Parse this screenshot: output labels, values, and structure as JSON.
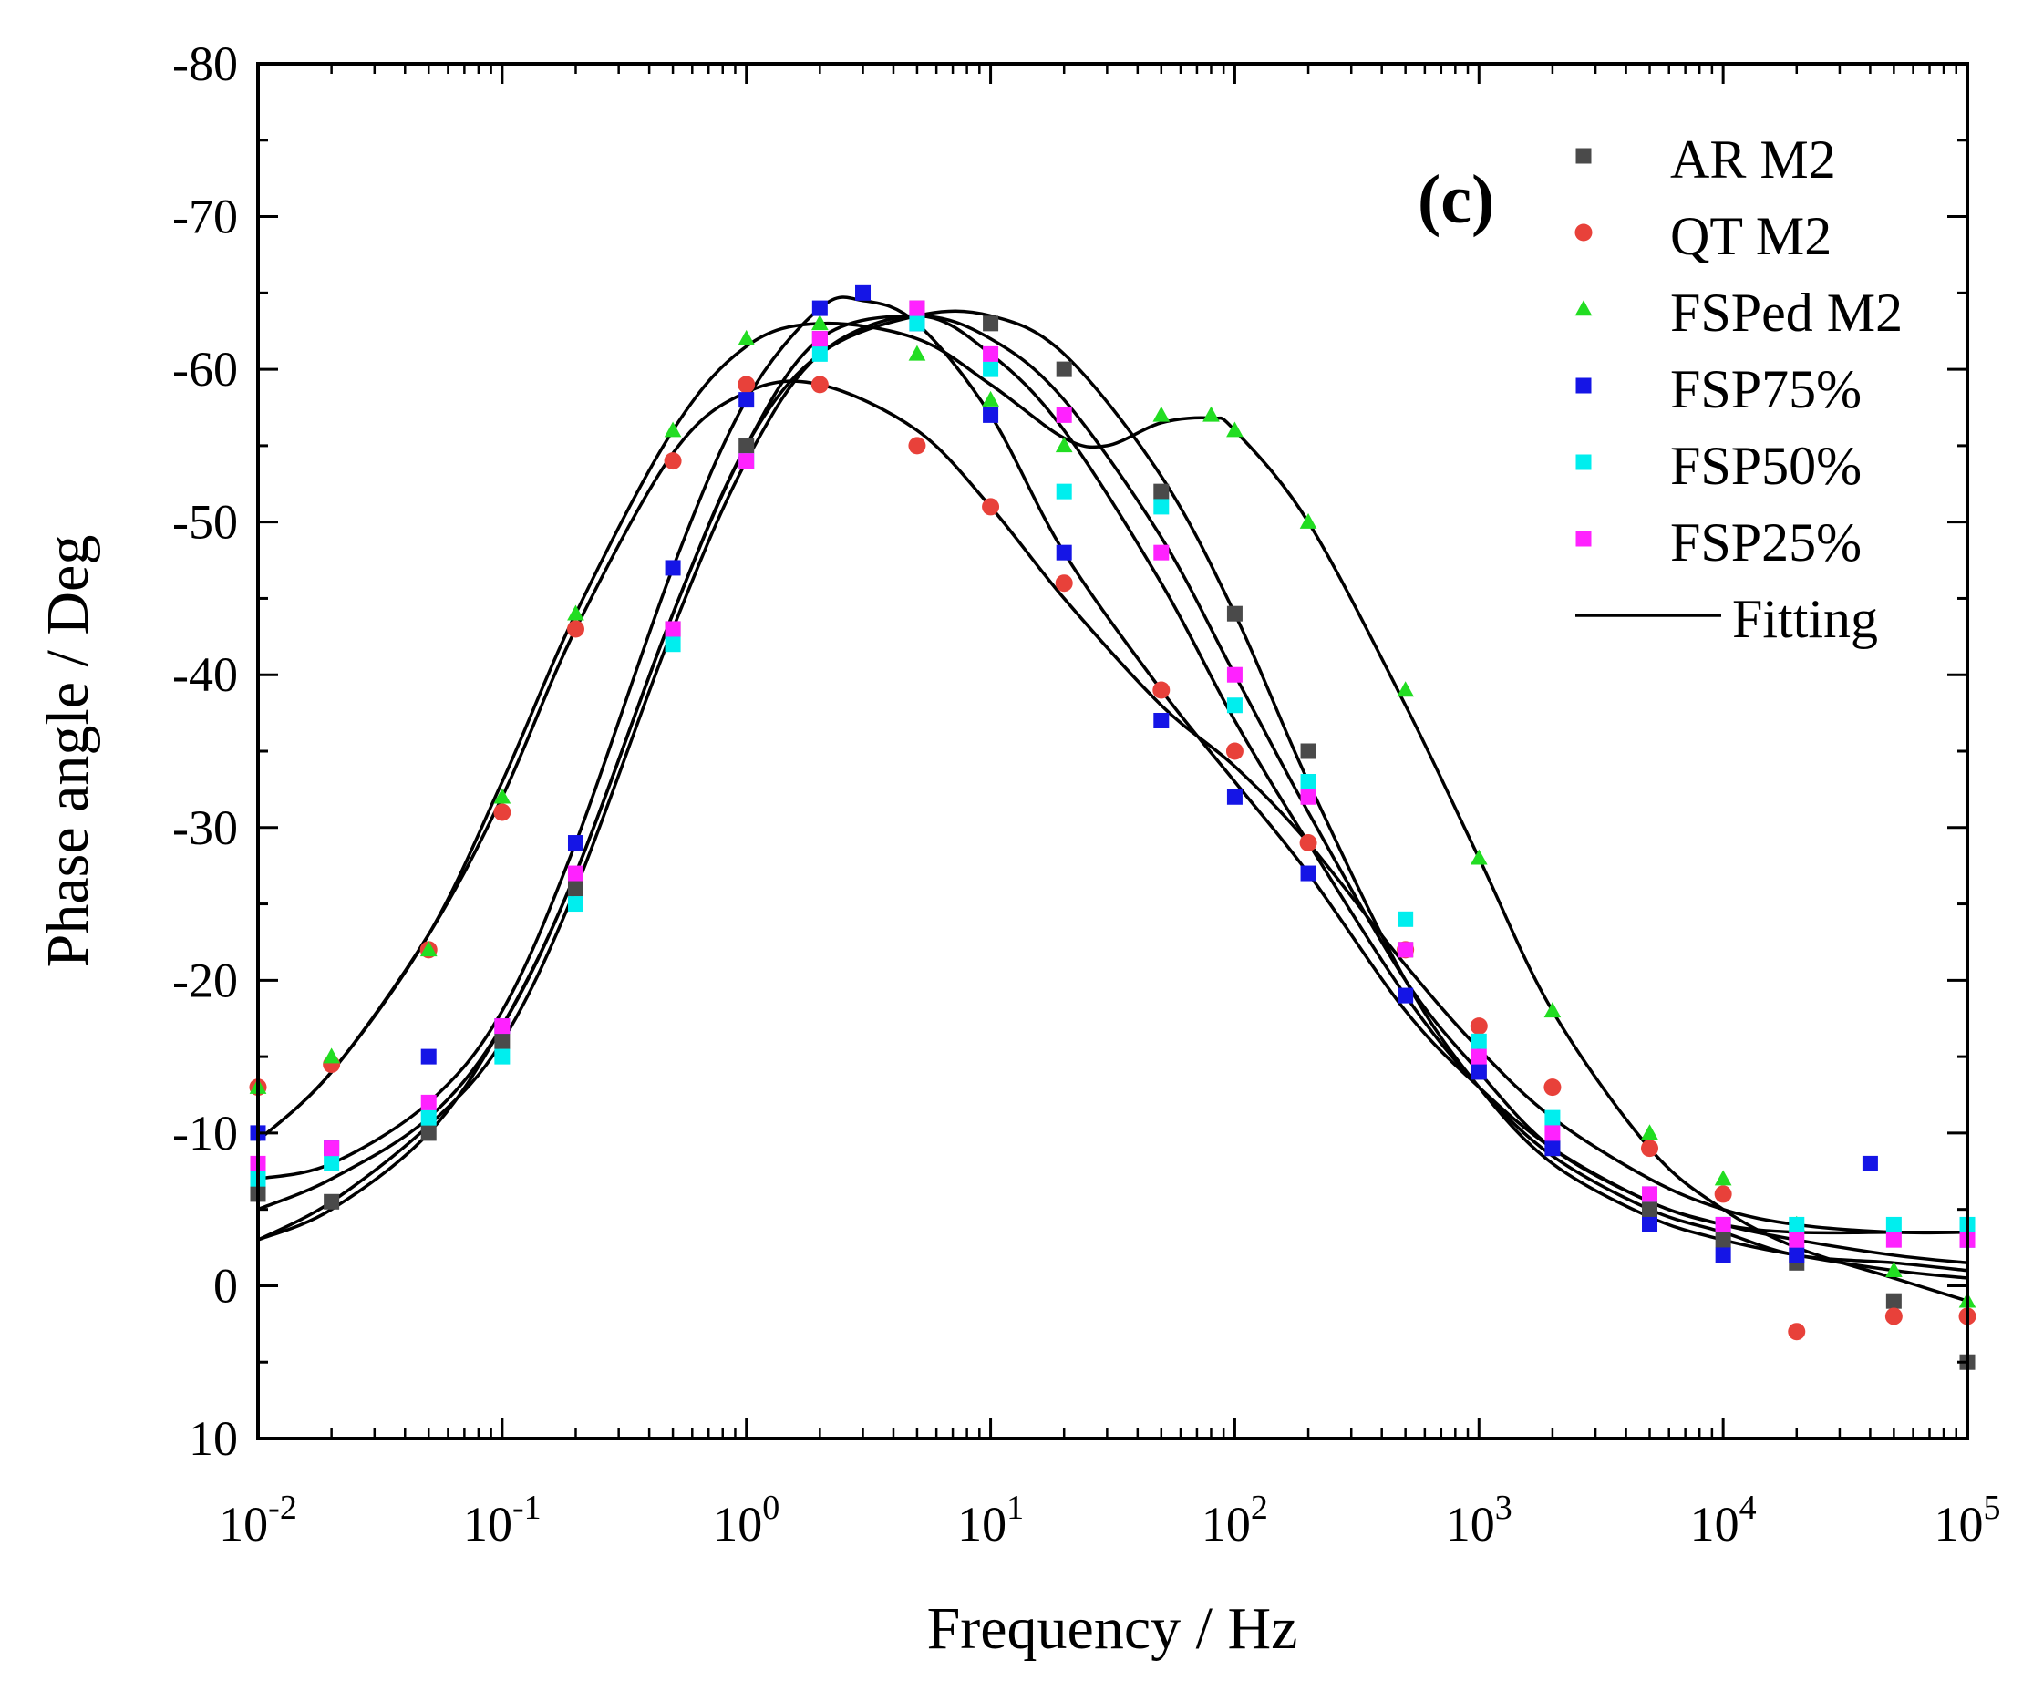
{
  "chart_data": {
    "type": "scatter",
    "title": "",
    "panel_label": "(c)",
    "xlabel": "Frequency / Hz",
    "ylabel": "Phase angle / Deg",
    "x_scale": "log",
    "xlim": [
      0.01,
      100000
    ],
    "ylim": [
      10,
      -80
    ],
    "x_ticks": [
      {
        "base": "10",
        "exp": "-2"
      },
      {
        "base": "10",
        "exp": "-1"
      },
      {
        "base": "10",
        "exp": "0"
      },
      {
        "base": "10",
        "exp": "1"
      },
      {
        "base": "10",
        "exp": "2"
      },
      {
        "base": "10",
        "exp": "3"
      },
      {
        "base": "10",
        "exp": "4"
      },
      {
        "base": "10",
        "exp": "5"
      }
    ],
    "y_ticks": [
      "-80",
      "-70",
      "-60",
      "-50",
      "-40",
      "-30",
      "-20",
      "-10",
      "0",
      "10"
    ],
    "legend_position": "top-right",
    "fit_label": "Fitting",
    "series": [
      {
        "name": "AR M2",
        "marker": "square",
        "color": "#4a4a4a",
        "x": [
          0.01,
          0.02,
          0.05,
          0.1,
          0.2,
          0.5,
          1,
          2,
          5,
          10,
          20,
          50,
          100,
          200,
          500,
          1000,
          2000,
          5000,
          10000,
          20000,
          50000,
          100000
        ],
        "y": [
          -6,
          -5.5,
          -10,
          -16,
          -26,
          -43,
          -55,
          -62,
          -64,
          -63,
          -60,
          -52,
          -44,
          -35,
          -22,
          -14,
          -9,
          -5,
          -3,
          -1.5,
          1,
          5
        ]
      },
      {
        "name": "QT M2",
        "marker": "circle",
        "color": "#e8413a",
        "x": [
          0.01,
          0.02,
          0.05,
          0.1,
          0.2,
          0.5,
          1,
          2,
          5,
          10,
          20,
          50,
          100,
          200,
          500,
          1000,
          2000,
          5000,
          10000,
          20000,
          50000,
          100000
        ],
        "y": [
          -13,
          -14.5,
          -22,
          -31,
          -43,
          -54,
          -59,
          -59,
          -55,
          -51,
          -46,
          -39,
          -35,
          -29,
          -22,
          -17,
          -13,
          -9,
          -6,
          3,
          2,
          2
        ]
      },
      {
        "name": "FSPed M2",
        "marker": "triangle",
        "color": "#22dd22",
        "x": [
          0.01,
          0.02,
          0.05,
          0.1,
          0.2,
          0.5,
          1,
          2,
          5,
          10,
          20,
          50,
          80,
          100,
          200,
          500,
          1000,
          2000,
          5000,
          10000,
          20000,
          50000,
          100000
        ],
        "y": [
          -13,
          -15,
          -22,
          -32,
          -44,
          -56,
          -62,
          -63,
          -61,
          -58,
          -55,
          -57,
          -57,
          -56,
          -50,
          -39,
          -28,
          -18,
          -10,
          -7,
          -4,
          -1,
          1
        ]
      },
      {
        "name": "FSP75%",
        "marker": "square",
        "color": "#1515e6",
        "x": [
          0.01,
          0.02,
          0.05,
          0.1,
          0.2,
          0.5,
          1,
          2,
          3,
          5,
          10,
          20,
          50,
          100,
          200,
          500,
          1000,
          2000,
          5000,
          10000,
          20000,
          40000,
          100000
        ],
        "y": [
          -10,
          -9,
          -15,
          -17,
          -29,
          -47,
          -58,
          -64,
          -65,
          -63,
          -57,
          -48,
          -37,
          -32,
          -27,
          -19,
          -14,
          -9,
          -4,
          -2,
          -2,
          -8,
          -3
        ]
      },
      {
        "name": "FSP50%",
        "marker": "square",
        "color": "#00eeee",
        "x": [
          0.01,
          0.02,
          0.05,
          0.1,
          0.2,
          0.5,
          1,
          2,
          5,
          10,
          20,
          50,
          100,
          200,
          500,
          1000,
          2000,
          5000,
          10000,
          20000,
          50000,
          100000
        ],
        "y": [
          -7,
          -8,
          -11,
          -15,
          -25,
          -42,
          -54,
          -61,
          -63,
          -60,
          -52,
          -51,
          -38,
          -33,
          -24,
          -16,
          -11,
          -6,
          -4,
          -4,
          -4,
          -4
        ]
      },
      {
        "name": "FSP25%",
        "marker": "square",
        "color": "#ff22ff",
        "x": [
          0.01,
          0.02,
          0.05,
          0.1,
          0.2,
          0.5,
          1,
          2,
          5,
          10,
          20,
          50,
          100,
          200,
          500,
          1000,
          2000,
          5000,
          10000,
          20000,
          50000,
          100000
        ],
        "y": [
          -8,
          -9,
          -12,
          -17,
          -27,
          -43,
          -54,
          -62,
          -64,
          -61,
          -57,
          -48,
          -40,
          -32,
          -22,
          -15,
          -10,
          -6,
          -4,
          -3,
          -3,
          -3
        ]
      }
    ],
    "fit_curves": [
      {
        "name": "AR M2 fit",
        "x": [
          0.01,
          0.02,
          0.05,
          0.1,
          0.2,
          0.5,
          1,
          2,
          5,
          10,
          20,
          50,
          100,
          200,
          500,
          1000,
          2000,
          5000,
          10000,
          20000,
          50000,
          100000
        ],
        "y": [
          -3,
          -5,
          -10,
          -17,
          -27,
          -44,
          -55,
          -61,
          -63.5,
          -63.5,
          -61,
          -53,
          -44,
          -33,
          -20,
          -13,
          -8,
          -4.5,
          -3,
          -2,
          -1,
          -0.5
        ]
      },
      {
        "name": "QT M2 fit",
        "x": [
          0.01,
          0.02,
          0.05,
          0.1,
          0.2,
          0.5,
          1,
          2,
          5,
          10,
          20,
          50,
          100,
          200,
          500,
          1000,
          2000,
          5000,
          10000,
          20000,
          50000,
          100000
        ],
        "y": [
          -9.5,
          -14,
          -23,
          -32,
          -43,
          -54.5,
          -58.5,
          -59,
          -56,
          -51,
          -45,
          -38,
          -34,
          -29,
          -21,
          -15.5,
          -11,
          -7,
          -5,
          -4,
          -3.5,
          -3.5
        ]
      },
      {
        "name": "FSPed M2 fit",
        "x": [
          0.01,
          0.02,
          0.05,
          0.1,
          0.2,
          0.5,
          1,
          2,
          5,
          10,
          20,
          30,
          50,
          80,
          100,
          200,
          500,
          1000,
          2000,
          5000,
          10000,
          20000,
          50000,
          100000
        ],
        "y": [
          -9.5,
          -14,
          -23,
          -33,
          -44,
          -56,
          -61.5,
          -63,
          -62,
          -59,
          -55.5,
          -55,
          -56.5,
          -56.8,
          -56,
          -50,
          -38,
          -28,
          -18,
          -9,
          -5,
          -2.5,
          -0.5,
          1
        ]
      },
      {
        "name": "FSP75% fit",
        "x": [
          0.01,
          0.02,
          0.05,
          0.1,
          0.2,
          0.5,
          1,
          2,
          3,
          5,
          10,
          20,
          50,
          100,
          200,
          500,
          1000,
          2000,
          5000,
          10000,
          20000,
          50000,
          100000
        ],
        "y": [
          -7,
          -8,
          -12,
          -18,
          -29,
          -47,
          -58,
          -64,
          -64.5,
          -63,
          -57,
          -48,
          -39,
          -33,
          -27,
          -18,
          -13,
          -9,
          -5.5,
          -4,
          -3.5,
          -3.5,
          -3.5
        ]
      },
      {
        "name": "FSP50% fit",
        "x": [
          0.01,
          0.02,
          0.05,
          0.1,
          0.2,
          0.5,
          1,
          2,
          5,
          10,
          20,
          50,
          100,
          200,
          500,
          1000,
          2000,
          5000,
          10000,
          20000,
          50000,
          100000
        ],
        "y": [
          -3,
          -5.5,
          -10.5,
          -16,
          -26,
          -43,
          -54,
          -61,
          -63.5,
          -61,
          -56,
          -46,
          -37,
          -29,
          -19,
          -13,
          -8.5,
          -5,
          -3.5,
          -2,
          -1.5,
          -1
        ]
      },
      {
        "name": "FSP25% fit",
        "x": [
          0.01,
          0.02,
          0.05,
          0.1,
          0.2,
          0.5,
          1,
          2,
          5,
          10,
          20,
          50,
          100,
          200,
          500,
          1000,
          2000,
          5000,
          10000,
          20000,
          50000,
          100000
        ],
        "y": [
          -5,
          -7,
          -11,
          -17,
          -27,
          -44,
          -55,
          -62,
          -63.5,
          -62,
          -58,
          -49,
          -40,
          -31,
          -20,
          -14,
          -9,
          -5.5,
          -4,
          -3,
          -2,
          -1.5
        ]
      }
    ]
  }
}
